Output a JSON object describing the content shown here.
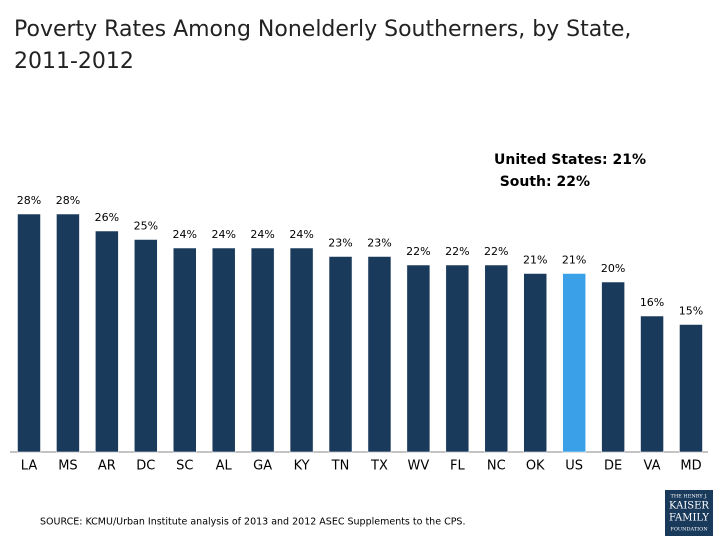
{
  "chart_data": {
    "type": "bar",
    "title": [
      "Poverty Rates Among Nonelderly Southerners, by State,",
      "2011-2012"
    ],
    "annotations": [
      "United States: 21%",
      "South: 22%"
    ],
    "categories": [
      "LA",
      "MS",
      "AR",
      "DC",
      "SC",
      "AL",
      "GA",
      "KY",
      "TN",
      "TX",
      "WV",
      "FL",
      "NC",
      "OK",
      "US",
      "DE",
      "VA",
      "MD"
    ],
    "values": [
      28,
      28,
      26,
      25,
      24,
      24,
      24,
      24,
      23,
      23,
      22,
      22,
      22,
      21,
      21,
      20,
      16,
      15
    ],
    "value_labels": [
      "28%",
      "28%",
      "26%",
      "25%",
      "24%",
      "24%",
      "24%",
      "24%",
      "23%",
      "23%",
      "22%",
      "22%",
      "22%",
      "21%",
      "21%",
      "20%",
      "16%",
      "15%"
    ],
    "colors": [
      "#1a3a5c",
      "#1a3a5c",
      "#1a3a5c",
      "#1a3a5c",
      "#1a3a5c",
      "#1a3a5c",
      "#1a3a5c",
      "#1a3a5c",
      "#1a3a5c",
      "#1a3a5c",
      "#1a3a5c",
      "#1a3a5c",
      "#1a3a5c",
      "#1a3a5c",
      "#3aa0e8",
      "#1a3a5c",
      "#1a3a5c",
      "#1a3a5c"
    ],
    "source": "SOURCE: KCMU/Urban Institute analysis of 2013 and 2012 ASEC Supplements to the CPS.",
    "logo": [
      "THE HENRY J.",
      "KAISER",
      "FAMILY",
      "FOUNDATION"
    ]
  }
}
